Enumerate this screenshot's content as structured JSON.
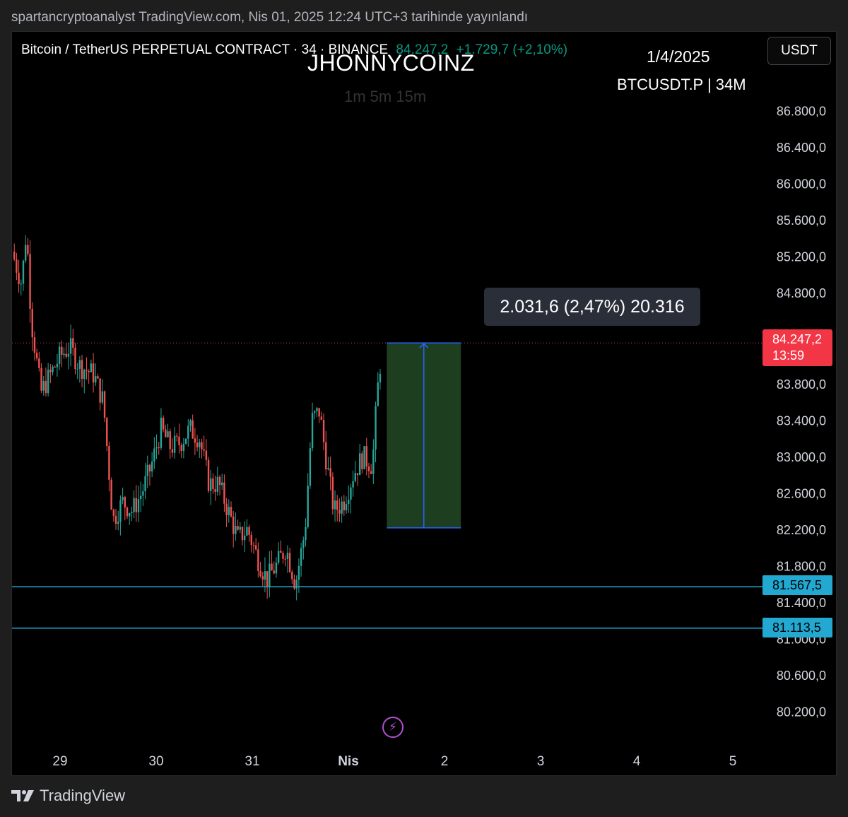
{
  "publish_line": "spartancryptoanalyst TradingView.com, Nis 01, 2025 12:24 UTC+3 tarihinde yayınlandı",
  "symbol": {
    "title": "Bitcoin / TetherUS PERPETUAL CONTRACT · 34 · BINANCE",
    "price": "84.247,2",
    "change": "+1.729,7 (+2,10%)"
  },
  "watermark": "JHONNYCOINZ",
  "timeframes": "1m 5m 15m",
  "date": "1/4/2025",
  "pair": "BTCUSDT.P | 34M",
  "currency_button": "USDT",
  "measure_label": "2.031,6 (2,47%) 20.316",
  "current_price_tag": {
    "price": "84.247,2",
    "countdown": "13:59"
  },
  "footer_brand": "TradingView",
  "colors": {
    "up": "#26a69a",
    "down": "#ef5350",
    "level": "#22a8d1",
    "tag": "#f23645",
    "measure_fill": "#1e3f1f"
  },
  "chart_data": {
    "type": "candlestick",
    "x_ticks": [
      "29",
      "30",
      "31",
      "Nis",
      "2",
      "3",
      "4",
      "5"
    ],
    "y_ticks": [
      "86.800,0",
      "86.400,0",
      "86.000,0",
      "85.600,0",
      "85.200,0",
      "84.800,0",
      "83.800,0",
      "83.400,0",
      "83.000,0",
      "82.600,0",
      "82.200,0",
      "81.800,0",
      "81.400,0",
      "81.000,0",
      "80.600,0",
      "80.200,0"
    ],
    "ylim": [
      79900,
      87200
    ],
    "current_price": 84247.2,
    "horizontal_levels": [
      {
        "label": "81.567,5",
        "value": 81567.5
      },
      {
        "label": "81.113,5",
        "value": 81113.5
      }
    ],
    "measure_range": {
      "from": 82215.6,
      "to": 84247.2,
      "start_day": 3.4,
      "end_day": 4.17
    },
    "close_path": [
      [
        -0.5,
        85250
      ],
      [
        -0.4,
        84900
      ],
      [
        -0.35,
        85500
      ],
      [
        -0.3,
        84500
      ],
      [
        -0.2,
        83700
      ],
      [
        -0.1,
        83900
      ],
      [
        0.0,
        84100
      ],
      [
        0.1,
        84200
      ],
      [
        0.2,
        84000
      ],
      [
        0.35,
        83900
      ],
      [
        0.45,
        83600
      ],
      [
        0.55,
        82300
      ],
      [
        0.65,
        82500
      ],
      [
        0.75,
        82400
      ],
      [
        0.85,
        82600
      ],
      [
        0.95,
        82900
      ],
      [
        1.05,
        83300
      ],
      [
        1.15,
        83100
      ],
      [
        1.25,
        83150
      ],
      [
        1.35,
        83300
      ],
      [
        1.45,
        83200
      ],
      [
        1.55,
        82700
      ],
      [
        1.65,
        82700
      ],
      [
        1.75,
        82400
      ],
      [
        1.85,
        82100
      ],
      [
        1.95,
        82200
      ],
      [
        2.05,
        81900
      ],
      [
        2.15,
        81650
      ],
      [
        2.25,
        81800
      ],
      [
        2.35,
        82000
      ],
      [
        2.45,
        81600
      ],
      [
        2.55,
        82200
      ],
      [
        2.62,
        83400
      ],
      [
        2.7,
        83500
      ],
      [
        2.75,
        83100
      ],
      [
        2.85,
        82400
      ],
      [
        2.95,
        82500
      ],
      [
        3.05,
        82800
      ],
      [
        3.15,
        83000
      ],
      [
        3.25,
        82900
      ],
      [
        3.3,
        83700
      ],
      [
        3.35,
        84200
      ]
    ]
  }
}
